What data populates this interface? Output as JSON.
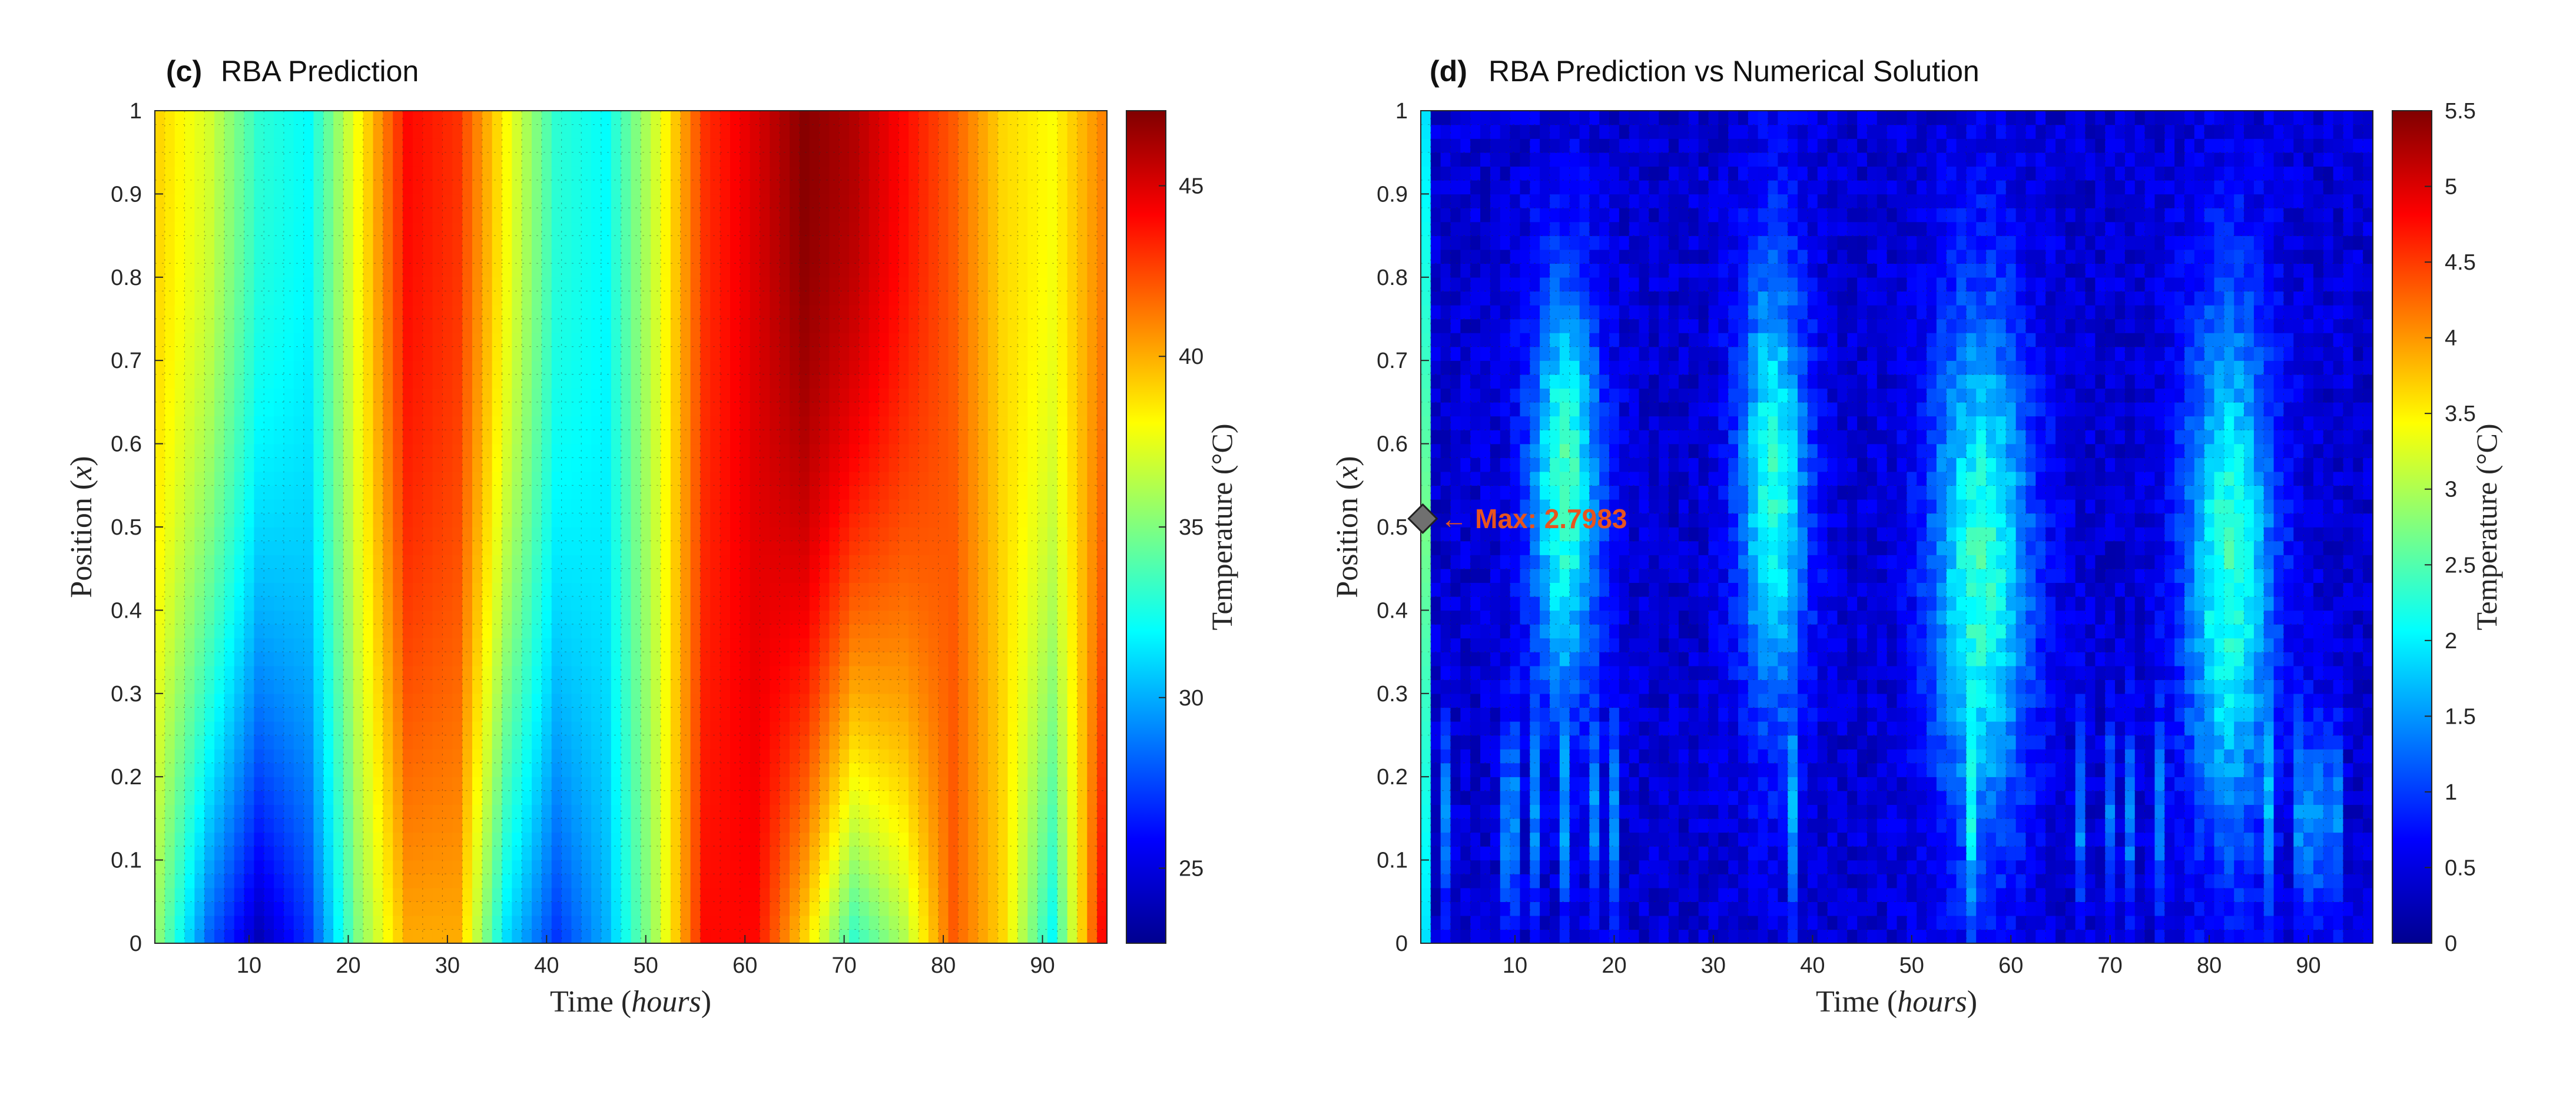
{
  "chart_data": [
    {
      "type": "heatmap",
      "panel_tag": "(c)",
      "title": "RBA Prediction",
      "xlabel": "Time",
      "xlabel_unit": "hours",
      "ylabel": "Position",
      "ylabel_var": "x",
      "xlim": [
        0.5,
        96.5
      ],
      "ylim": [
        0,
        1
      ],
      "xticks": [
        10,
        20,
        30,
        40,
        50,
        60,
        70,
        80,
        90
      ],
      "yticks": [
        0,
        0.1,
        0.2,
        0.3,
        0.4,
        0.5,
        0.6,
        0.7,
        0.8,
        0.9,
        1
      ],
      "colormap": "jet",
      "colorbar": {
        "label": "Temperature (°C)",
        "range": [
          22.8,
          47.2
        ],
        "ticks": [
          25,
          30,
          35,
          40,
          45
        ]
      },
      "grid": true,
      "columns_top": [
        39,
        37,
        33,
        32,
        38,
        44,
        43,
        38,
        33,
        32,
        37,
        43,
        45,
        47,
        46,
        44,
        42,
        39,
        38,
        41
      ],
      "columns_bottom": [
        35,
        28,
        24,
        27,
        35,
        40,
        40,
        31,
        27,
        30,
        36,
        44,
        44,
        39,
        33,
        36,
        42,
        39,
        32,
        44
      ],
      "column_times": [
        1,
        6,
        11,
        16,
        21,
        26,
        31,
        36,
        41,
        46,
        51,
        56,
        61,
        66,
        71,
        76,
        81,
        86,
        91,
        96
      ]
    },
    {
      "type": "heatmap",
      "panel_tag": "(d)",
      "title": "RBA Prediction vs Numerical Solution",
      "xlabel": "Time",
      "xlabel_unit": "hours",
      "ylabel": "Position",
      "ylabel_var": "x",
      "xlim": [
        0.5,
        96.5
      ],
      "ylim": [
        0,
        1
      ],
      "xticks": [
        10,
        20,
        30,
        40,
        50,
        60,
        70,
        80,
        90
      ],
      "yticks": [
        0,
        0.1,
        0.2,
        0.3,
        0.4,
        0.5,
        0.6,
        0.7,
        0.8,
        0.9,
        1
      ],
      "colormap": "jet",
      "colorbar": {
        "label": "Temperature (°C)",
        "range": [
          0,
          5.5
        ],
        "ticks": [
          0,
          0.5,
          1,
          1.5,
          2,
          2.5,
          3,
          3.5,
          4,
          4.5,
          5,
          5.5
        ]
      },
      "grid": true,
      "blobs": [
        {
          "t": 15,
          "x": 0.55,
          "amp": 2.0,
          "wt": 3.5,
          "wx": 0.25
        },
        {
          "t": 36,
          "x": 0.55,
          "amp": 1.8,
          "wt": 3.5,
          "wx": 0.28
        },
        {
          "t": 57,
          "x": 0.45,
          "amp": 1.9,
          "wt": 5.0,
          "wx": 0.32
        },
        {
          "t": 82,
          "x": 0.45,
          "amp": 1.9,
          "wt": 4.5,
          "wx": 0.32
        }
      ],
      "annotation": {
        "t": 0.7,
        "x": 0.51,
        "text": "← Max: 2.7983",
        "value": 2.7983
      }
    }
  ]
}
